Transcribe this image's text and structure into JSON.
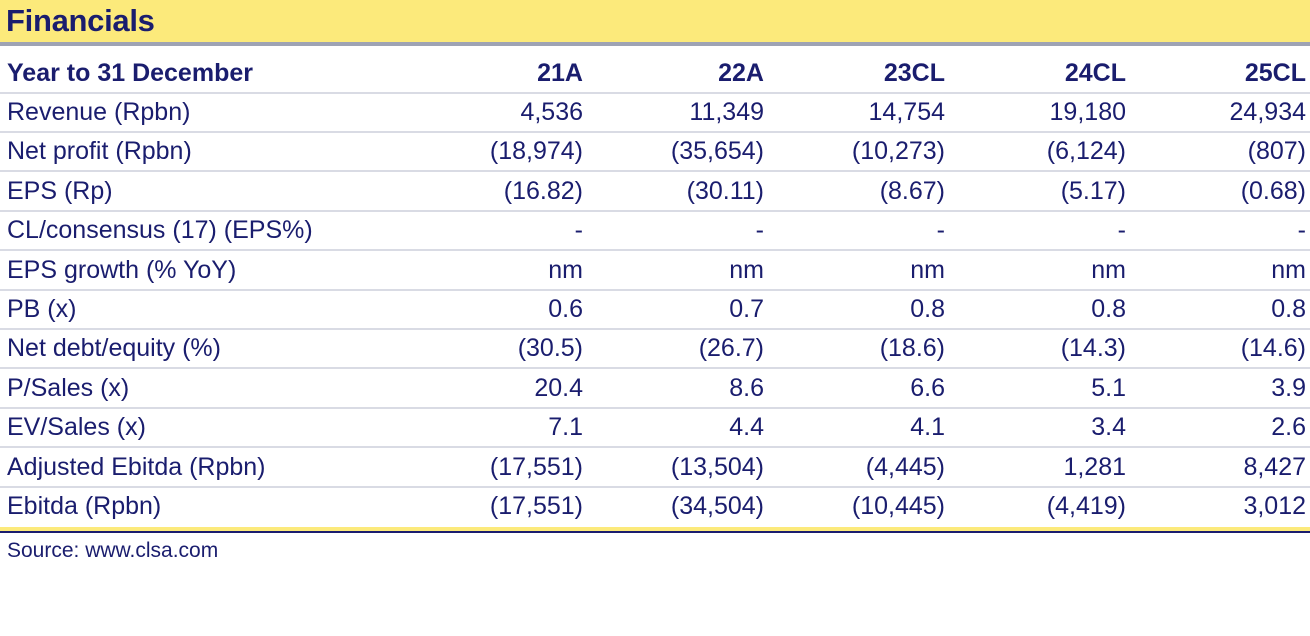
{
  "title": "Financials",
  "header": {
    "label": "Year to 31 December",
    "columns": [
      "21A",
      "22A",
      "23CL",
      "24CL",
      "25CL"
    ]
  },
  "rows": [
    {
      "label": "Revenue (Rpbn)",
      "values": [
        "4,536",
        "11,349",
        "14,754",
        "19,180",
        "24,934"
      ]
    },
    {
      "label": "Net profit (Rpbn)",
      "values": [
        "(18,974)",
        "(35,654)",
        "(10,273)",
        "(6,124)",
        "(807)"
      ]
    },
    {
      "label": "EPS (Rp)",
      "values": [
        "(16.82)",
        "(30.11)",
        "(8.67)",
        "(5.17)",
        "(0.68)"
      ]
    },
    {
      "label": "CL/consensus (17) (EPS%)",
      "values": [
        "-",
        "-",
        "-",
        "-",
        "-"
      ]
    },
    {
      "label": "EPS growth (% YoY)",
      "values": [
        "nm",
        "nm",
        "nm",
        "nm",
        "nm"
      ]
    },
    {
      "label": "PB (x)",
      "values": [
        "0.6",
        "0.7",
        "0.8",
        "0.8",
        "0.8"
      ]
    },
    {
      "label": "Net debt/equity (%)",
      "values": [
        "(30.5)",
        "(26.7)",
        "(18.6)",
        "(14.3)",
        "(14.6)"
      ]
    },
    {
      "label": "P/Sales (x)",
      "values": [
        "20.4",
        "8.6",
        "6.6",
        "5.1",
        "3.9"
      ]
    },
    {
      "label": "EV/Sales (x)",
      "values": [
        "7.1",
        "4.4",
        "4.1",
        "3.4",
        "2.6"
      ]
    },
    {
      "label": "Adjusted Ebitda (Rpbn)",
      "values": [
        "(17,551)",
        "(13,504)",
        "(4,445)",
        "1,281",
        "8,427"
      ]
    },
    {
      "label": "Ebitda (Rpbn)",
      "values": [
        "(17,551)",
        "(34,504)",
        "(10,445)",
        "(4,419)",
        "3,012"
      ]
    }
  ],
  "source": "Source: www.clsa.com",
  "colors": {
    "title_background": "#fcea7b",
    "text": "#1a1d6e",
    "row_divider": "#d9dbe4",
    "title_underline": "#9ea3b4"
  }
}
